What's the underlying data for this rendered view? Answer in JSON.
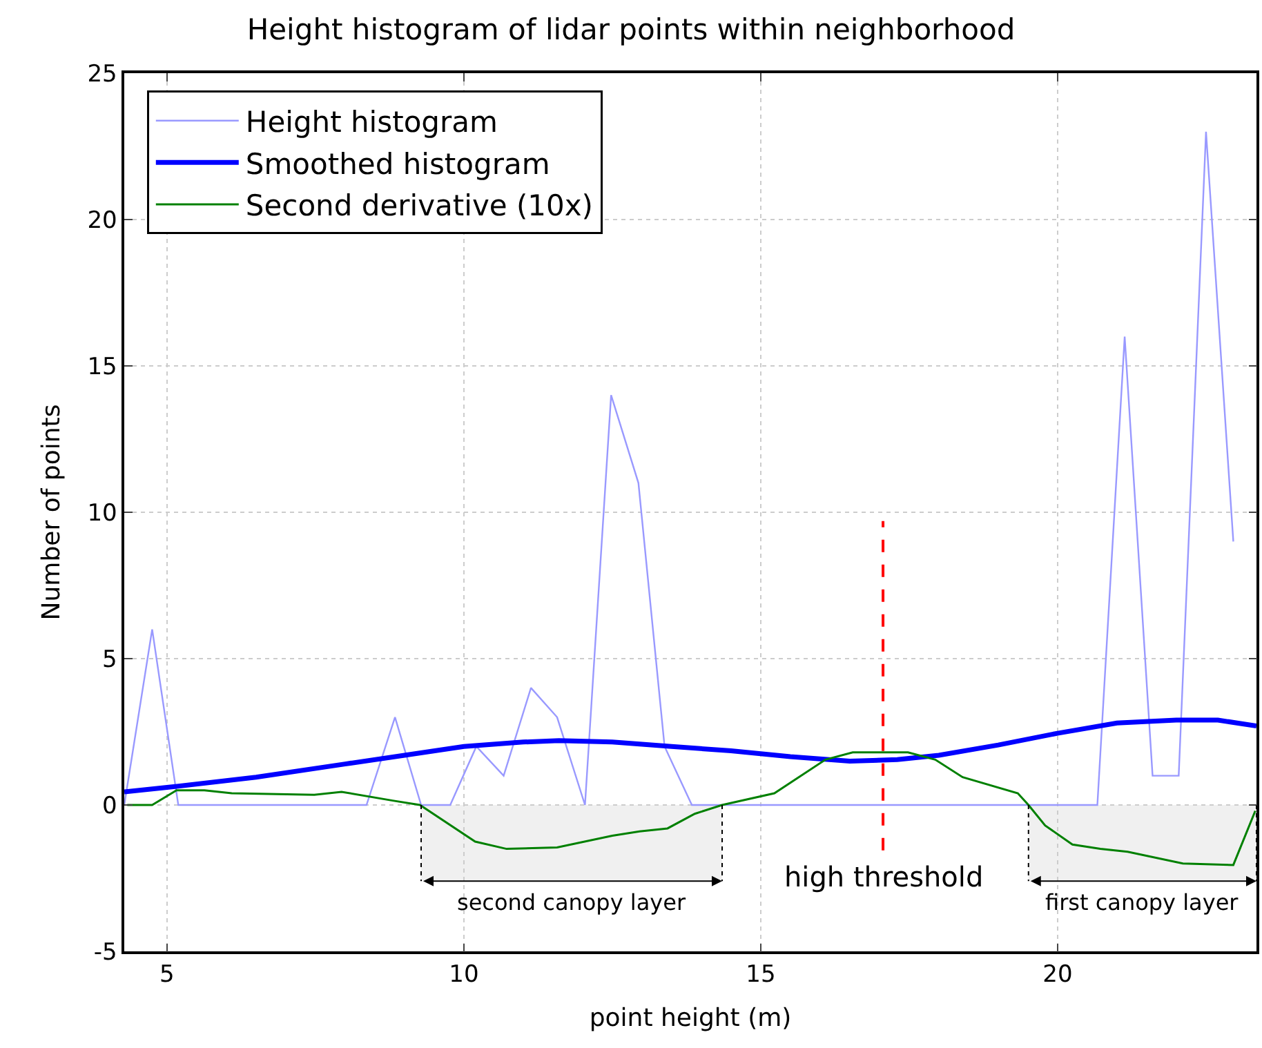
{
  "chart_data": {
    "type": "line",
    "title": "Height histogram of lidar points within neighborhood",
    "xlabel": "point height (m)",
    "ylabel": "Number of points",
    "xlim": [
      4.28,
      23.35
    ],
    "ylim": [
      -5,
      25
    ],
    "xticks": [
      5,
      10,
      15,
      20
    ],
    "yticks": [
      -5,
      0,
      5,
      10,
      15,
      20,
      25
    ],
    "grid": true,
    "legend": "top left",
    "marker": "none",
    "line_style": "solid",
    "series": [
      {
        "name": "Height histogram",
        "color": "#9999ff",
        "x": [
          4.28,
          4.75,
          5.19,
          8.36,
          8.84,
          9.28,
          9.77,
          10.21,
          10.67,
          11.13,
          11.57,
          12.04,
          12.48,
          12.94,
          13.38,
          13.84,
          20.67,
          21.13,
          21.6,
          22.04,
          22.5,
          22.96
        ],
        "values": [
          0,
          6,
          0,
          0,
          3,
          0,
          0,
          2,
          1,
          4,
          3,
          0,
          14,
          11,
          2,
          0,
          0,
          16,
          1,
          1,
          23,
          9
        ]
      },
      {
        "name": "Smoothed histogram",
        "color": "#0000ff",
        "x": [
          4.28,
          5,
          6.5,
          8,
          9,
          10,
          11,
          11.6,
          12.5,
          13.5,
          14.5,
          15.5,
          16.5,
          17.3,
          18,
          19,
          20,
          21,
          22,
          22.7,
          23.35
        ],
        "values": [
          0.45,
          0.6,
          0.95,
          1.4,
          1.7,
          2.0,
          2.15,
          2.2,
          2.15,
          2.0,
          1.85,
          1.65,
          1.5,
          1.55,
          1.7,
          2.05,
          2.45,
          2.8,
          2.9,
          2.9,
          2.7
        ]
      },
      {
        "name": "Second derivative (10x)",
        "color": "#008000",
        "x": [
          4.33,
          4.75,
          5.16,
          5.63,
          6.09,
          7.48,
          7.94,
          8.8,
          9.26,
          10.19,
          10.72,
          11.57,
          12.5,
          12.96,
          13.43,
          13.89,
          14.35,
          15.23,
          16.09,
          16.55,
          17.48,
          17.94,
          18.4,
          19.33,
          19.51,
          19.79,
          20.25,
          20.72,
          21.18,
          22.11,
          22.96,
          23.33
        ],
        "values": [
          0,
          0,
          0.5,
          0.5,
          0.4,
          0.35,
          0.45,
          0.15,
          0,
          -1.25,
          -1.5,
          -1.45,
          -1.05,
          -0.9,
          -0.8,
          -0.3,
          0,
          0.4,
          1.55,
          1.8,
          1.8,
          1.55,
          0.95,
          0.4,
          0,
          -0.7,
          -1.35,
          -1.5,
          -1.6,
          -2.0,
          -2.05,
          -0.2
        ]
      }
    ],
    "ref_lines": [
      {
        "axis": "x",
        "value": 17.06,
        "label": "high threshold",
        "color": "#ff0000",
        "line_style": "dashed"
      }
    ],
    "bands": [
      {
        "axis": "x",
        "from": 9.28,
        "to": 14.35,
        "label": "second canopy layer",
        "color": "#000000"
      },
      {
        "axis": "x",
        "from": 19.51,
        "to": 23.35,
        "label": "first canopy layer",
        "color": "#000000"
      }
    ]
  }
}
